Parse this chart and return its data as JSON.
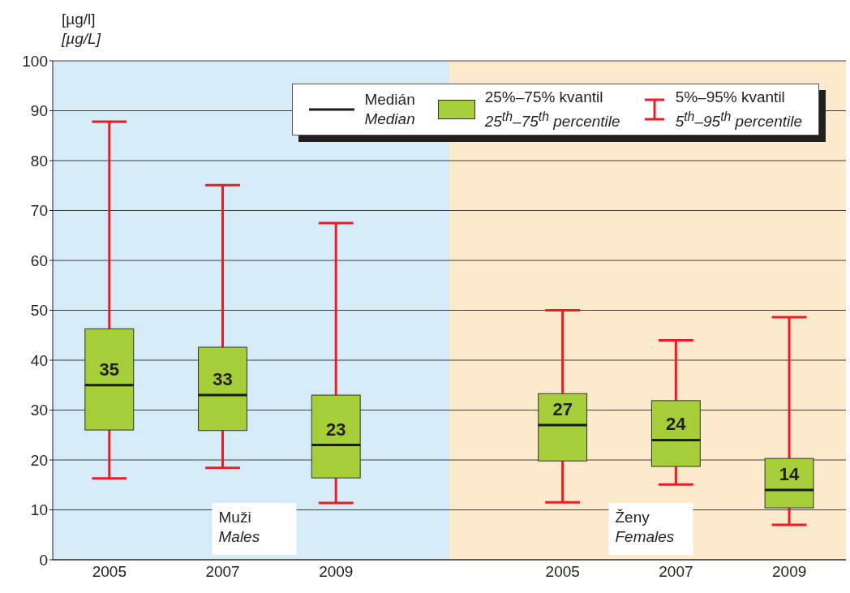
{
  "chart_data": {
    "type": "box",
    "ylabel": "[µg/l]\n[µg/L]",
    "categories": [
      "2005",
      "2007",
      "2009",
      null,
      "2005",
      "2007",
      "2009"
    ],
    "series": [
      {
        "name": "25%–75% kvantil\n25$^{th}$–75$^{th}$ percentile",
        "color": "#a6ce39",
        "boxes": [
          {
            "low": 16.3,
            "q1": 26,
            "median": 35,
            "q3": 46.3,
            "high": 87.8
          },
          {
            "low": 18.4,
            "q1": 25.9,
            "median": 33,
            "q3": 42.6,
            "high": 75.1
          },
          {
            "low": 11.4,
            "q1": 16.4,
            "median": 23,
            "q3": 33,
            "high": 67.5
          },
          null,
          {
            "low": 11.5,
            "q1": 19.8,
            "median": 27,
            "q3": 33.3,
            "high": 50
          },
          {
            "low": 15.1,
            "q1": 18.7,
            "median": 24,
            "q3": 31.9,
            "high": 44
          },
          {
            "low": 7,
            "q1": 10.4,
            "median": 14,
            "q3": 20.3,
            "high": 48.6
          }
        ],
        "value_labels": [
          "35",
          "33",
          "23",
          null,
          "27",
          "24",
          "14"
        ]
      }
    ],
    "ylim": [
      0,
      100
    ],
    "yticks": [
      0,
      10,
      20,
      30,
      40,
      50,
      60,
      70,
      80,
      90,
      100
    ],
    "grid": "y",
    "legend": "top right",
    "annotations": [
      "Medián\nMedian",
      "5%–95% kvantil\n5$^{th}$–95$^{th}$ percentile",
      "Muži\nMales",
      "Ženy\nFemales"
    ]
  }
}
